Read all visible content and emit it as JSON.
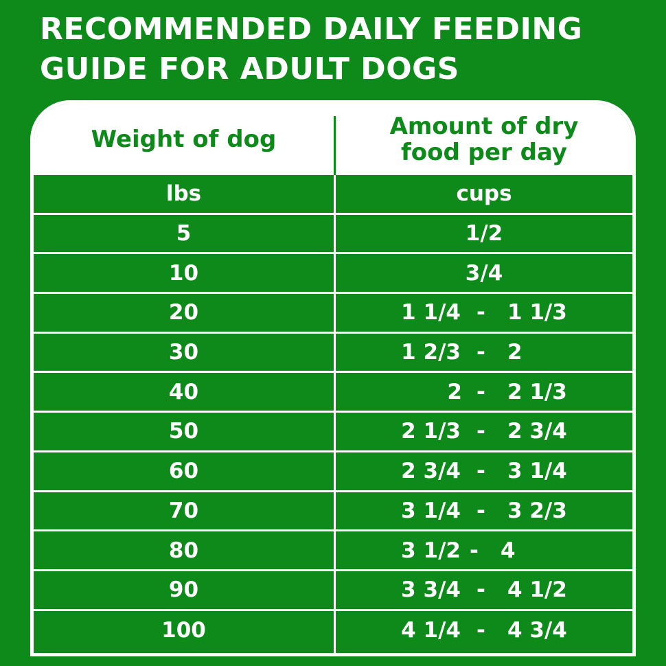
{
  "title": "RECOMMENDED DAILY FEEDING GUIDE FOR ADULT DOGS",
  "colors": {
    "background": "#0d8a19",
    "header_bg": "#ffffff",
    "text_on_green": "#ffffff",
    "text_on_white": "#0d8a19"
  },
  "table": {
    "headers": {
      "weight": "Weight of dog",
      "amount": "Amount of dry food per day"
    },
    "units": {
      "weight": "lbs",
      "amount": "cups"
    },
    "rows": [
      {
        "weight": "5",
        "amount": "1/2"
      },
      {
        "weight": "10",
        "amount": "3/4"
      },
      {
        "weight": "20",
        "min": "1 1/4",
        "dash": "-",
        "max": "1 1/3"
      },
      {
        "weight": "30",
        "min": "1 2/3",
        "dash": "-",
        "max": "2"
      },
      {
        "weight": "40",
        "min": "2",
        "dash": "-",
        "max": "2 1/3"
      },
      {
        "weight": "50",
        "min": "2 1/3",
        "dash": "-",
        "max": "2 3/4"
      },
      {
        "weight": "60",
        "min": "2 3/4",
        "dash": "-",
        "max": "3 1/4"
      },
      {
        "weight": "70",
        "min": "3 1/4",
        "dash": "-",
        "max": "3 2/3"
      },
      {
        "weight": "80",
        "min": "3 1/2",
        "dash": "-",
        "max": "4"
      },
      {
        "weight": "90",
        "min": "3 3/4",
        "dash": "-",
        "max": "4 1/2"
      },
      {
        "weight": "100",
        "min": "4 1/4",
        "dash": "-",
        "max": "4 3/4"
      }
    ]
  }
}
